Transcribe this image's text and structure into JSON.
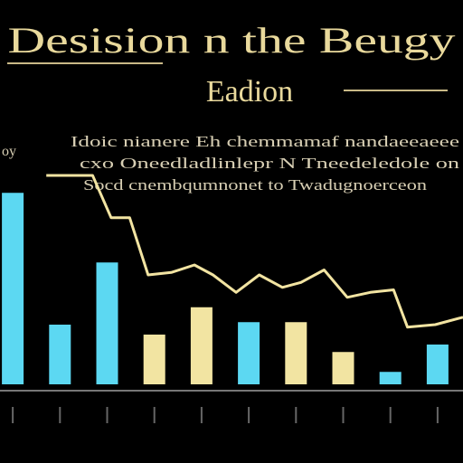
{
  "chart_data": {
    "type": "bar",
    "title": "Desision n the Beugy",
    "subtitle": "Eadion",
    "annotation": [
      "Idoic nianere Eh chemmamaf nandaeeaeee",
      "cxo Oneedladlinlepr N Tneedeledole on",
      "Socd cnembqumnonet to Twadugnoerceon"
    ],
    "y_label": "oy",
    "categories": [
      null,
      null,
      null,
      null,
      null,
      null,
      null,
      null,
      null,
      null
    ],
    "values": [
      77,
      24,
      49,
      20,
      31,
      25,
      25,
      13,
      5,
      16
    ],
    "colors": [
      "#5cd8f2",
      "#5cd8f2",
      "#5cd8f2",
      "#f2e4a2",
      "#f2e4a2",
      "#5cd8f2",
      "#f2e4a2",
      "#f2e4a2",
      "#5cd8f2",
      "#5cd8f2"
    ],
    "ylim": [
      0,
      100
    ],
    "line": {
      "color": "#f2e4a2",
      "xlim": [
        0,
        100
      ],
      "x": [
        10,
        20,
        24,
        28,
        32,
        37,
        42,
        46,
        51,
        56,
        61,
        65,
        70,
        75,
        80,
        85,
        88,
        94,
        100
      ],
      "values": [
        84,
        84,
        67,
        67,
        44,
        45,
        48,
        44,
        37,
        44,
        39,
        41,
        46,
        35,
        37,
        38,
        23,
        24,
        27
      ]
    }
  }
}
